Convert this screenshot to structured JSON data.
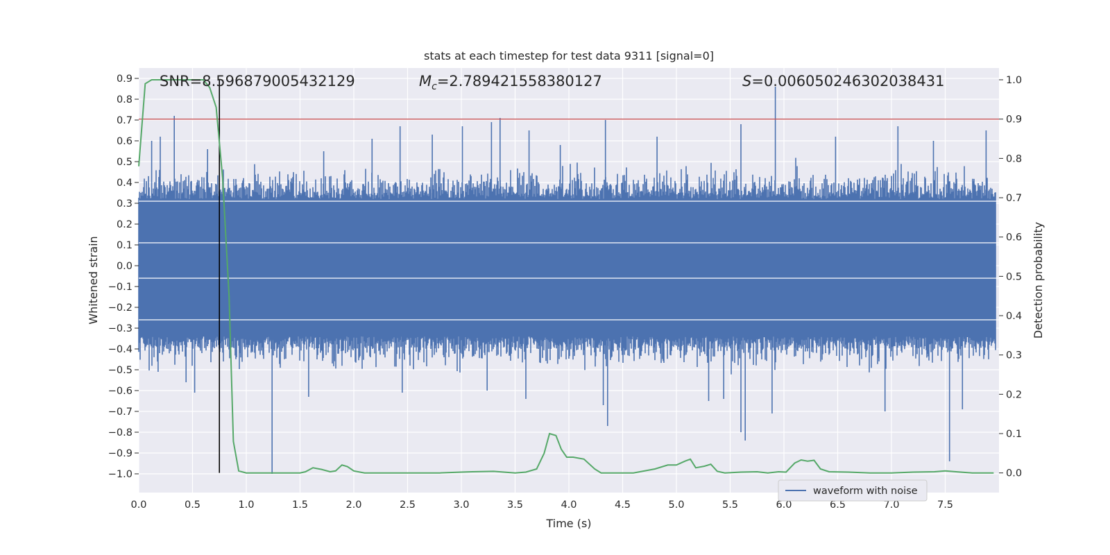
{
  "chart_data": {
    "type": "line",
    "title": "stats at each timestep for test data 9311 [signal=0]",
    "xlabel": "Time (s)",
    "ylabel": "Whitened strain",
    "y2label": "Detection probability",
    "xlim": [
      0.0,
      8.0
    ],
    "ylim": [
      -1.09,
      0.95
    ],
    "y2lim": [
      -0.05,
      1.03
    ],
    "xticks": [
      "0.0",
      "0.5",
      "1.0",
      "1.5",
      "2.0",
      "2.5",
      "3.0",
      "3.5",
      "4.0",
      "4.5",
      "5.0",
      "5.5",
      "6.0",
      "6.5",
      "7.0",
      "7.5"
    ],
    "yticks": [
      "0.9",
      "0.8",
      "0.7",
      "0.6",
      "0.5",
      "0.4",
      "0.3",
      "0.2",
      "0.1",
      "0.0",
      "−0.1",
      "−0.2",
      "−0.3",
      "−0.4",
      "−0.5",
      "−0.6",
      "−0.7",
      "−0.8",
      "−0.9",
      "−1.0"
    ],
    "y2ticks": [
      "1.0",
      "0.9",
      "0.8",
      "0.7",
      "0.6",
      "0.5",
      "0.4",
      "0.3",
      "0.2",
      "0.1",
      "0.0"
    ],
    "grid": true,
    "annotations": {
      "snr": "SNR=8.596879005432129",
      "mc_prefix": "M",
      "mc_sub": "c",
      "mc_value": "=2.789421558380127",
      "s_prefix": "S",
      "s_value": "=0.006050246302038431"
    },
    "threshold": 0.9,
    "marker_time": 0.75,
    "series": [
      {
        "name": "waveform with noise",
        "axis": "left",
        "color": "#4c72b0",
        "envelope_band": [
          -0.34,
          0.32
        ],
        "spikes": [
          {
            "t": 0.33,
            "v": 0.72
          },
          {
            "t": 0.12,
            "v": 0.6
          },
          {
            "t": 0.2,
            "v": 0.62
          },
          {
            "t": 0.64,
            "v": 0.56
          },
          {
            "t": 0.52,
            "v": -0.61
          },
          {
            "t": 0.44,
            "v": -0.56
          },
          {
            "t": 0.18,
            "v": -0.51
          },
          {
            "t": 1.24,
            "v": -1.0
          },
          {
            "t": 1.58,
            "v": -0.63
          },
          {
            "t": 1.72,
            "v": 0.55
          },
          {
            "t": 2.17,
            "v": 0.61
          },
          {
            "t": 2.43,
            "v": 0.67
          },
          {
            "t": 2.73,
            "v": 0.63
          },
          {
            "t": 2.45,
            "v": -0.61
          },
          {
            "t": 3.01,
            "v": 0.67
          },
          {
            "t": 3.28,
            "v": 0.69
          },
          {
            "t": 3.36,
            "v": 0.71
          },
          {
            "t": 3.63,
            "v": 0.65
          },
          {
            "t": 3.24,
            "v": -0.6
          },
          {
            "t": 3.6,
            "v": -0.64
          },
          {
            "t": 3.92,
            "v": 0.58
          },
          {
            "t": 4.34,
            "v": 0.7
          },
          {
            "t": 4.36,
            "v": -0.77
          },
          {
            "t": 4.32,
            "v": -0.67
          },
          {
            "t": 4.82,
            "v": 0.62
          },
          {
            "t": 5.3,
            "v": -0.65
          },
          {
            "t": 5.44,
            "v": -0.64
          },
          {
            "t": 5.6,
            "v": 0.68
          },
          {
            "t": 5.64,
            "v": -0.84
          },
          {
            "t": 5.6,
            "v": -0.8
          },
          {
            "t": 5.92,
            "v": 0.86
          },
          {
            "t": 5.89,
            "v": -0.71
          },
          {
            "t": 6.48,
            "v": 0.62
          },
          {
            "t": 6.94,
            "v": -0.7
          },
          {
            "t": 7.06,
            "v": 0.67
          },
          {
            "t": 7.39,
            "v": 0.6
          },
          {
            "t": 7.54,
            "v": -0.94
          },
          {
            "t": 7.66,
            "v": -0.69
          },
          {
            "t": 7.88,
            "v": 0.65
          }
        ]
      },
      {
        "name": "detection probability",
        "axis": "right",
        "color": "#55a868",
        "x": [
          0.0,
          0.06,
          0.12,
          0.2,
          0.3,
          0.4,
          0.5,
          0.6,
          0.66,
          0.72,
          0.78,
          0.84,
          0.88,
          0.93,
          1.0,
          1.1,
          1.2,
          1.3,
          1.4,
          1.5,
          1.55,
          1.62,
          1.7,
          1.78,
          1.83,
          1.89,
          1.94,
          2.0,
          2.1,
          2.2,
          2.4,
          2.6,
          2.8,
          3.0,
          3.1,
          3.3,
          3.5,
          3.6,
          3.7,
          3.77,
          3.82,
          3.88,
          3.93,
          3.98,
          4.04,
          4.14,
          4.24,
          4.3,
          4.4,
          4.6,
          4.8,
          4.92,
          5.0,
          5.08,
          5.13,
          5.18,
          5.26,
          5.32,
          5.38,
          5.45,
          5.6,
          5.75,
          5.85,
          5.95,
          6.02,
          6.1,
          6.16,
          6.22,
          6.28,
          6.34,
          6.42,
          6.6,
          6.8,
          7.0,
          7.2,
          7.4,
          7.5,
          7.6,
          7.75,
          7.95
        ],
        "values": [
          0.78,
          0.99,
          1.0,
          1.0,
          1.0,
          1.0,
          1.0,
          1.0,
          0.98,
          0.93,
          0.75,
          0.45,
          0.08,
          0.005,
          0.0,
          0.0,
          0.0,
          0.0,
          0.0,
          0.0,
          0.003,
          0.013,
          0.009,
          0.003,
          0.005,
          0.02,
          0.016,
          0.005,
          0.0,
          0.0,
          0.0,
          0.0,
          0.0,
          0.002,
          0.003,
          0.004,
          0.0,
          0.002,
          0.01,
          0.05,
          0.1,
          0.095,
          0.06,
          0.04,
          0.04,
          0.035,
          0.01,
          0.0,
          0.0,
          0.0,
          0.01,
          0.02,
          0.02,
          0.03,
          0.035,
          0.013,
          0.017,
          0.022,
          0.004,
          0.0,
          0.002,
          0.003,
          0.0,
          0.003,
          0.002,
          0.025,
          0.033,
          0.03,
          0.032,
          0.01,
          0.003,
          0.002,
          0.0,
          0.0,
          0.002,
          0.003,
          0.005,
          0.003,
          0.0,
          0.0
        ]
      }
    ],
    "legend": {
      "position": "lower-right",
      "entries": [
        "waveform with noise"
      ]
    },
    "colors": {
      "background": "#eaeaf2",
      "grid": "#ffffff",
      "threshold": "#c44e52",
      "marker": "#000000",
      "text": "#262626"
    }
  }
}
